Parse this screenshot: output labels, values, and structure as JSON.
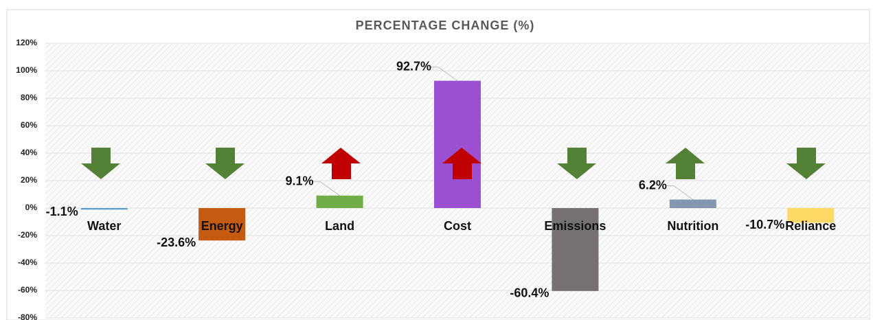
{
  "chart_data": {
    "type": "bar",
    "title": "PERCENTAGE CHANGE (%)",
    "categories": [
      "Water",
      "Energy",
      "Land",
      "Cost",
      "Emissions",
      "Nutrition",
      "Reliance"
    ],
    "values": [
      -1.1,
      -23.6,
      9.1,
      92.7,
      -60.4,
      6.2,
      -10.7
    ],
    "value_labels": [
      "-1.1%",
      "-23.6%",
      "9.1%",
      "92.7%",
      "-60.4%",
      "6.2%",
      "-10.7%"
    ],
    "colors": [
      "#5b9bd5",
      "#c55a11",
      "#70ad47",
      "#9b4fd1",
      "#767171",
      "#8497b0",
      "#ffd966"
    ],
    "ylim": [
      -80,
      120
    ],
    "yticks": [
      {
        "value": -80,
        "label": "-80%"
      },
      {
        "value": -60,
        "label": "-60%"
      },
      {
        "value": -40,
        "label": "-40%"
      },
      {
        "value": -20,
        "label": "-20%"
      },
      {
        "value": 0,
        "label": "0%"
      },
      {
        "value": 20,
        "label": "20%"
      },
      {
        "value": 40,
        "label": "40%"
      },
      {
        "value": 60,
        "label": "60%"
      },
      {
        "value": 80,
        "label": "80%"
      },
      {
        "value": 100,
        "label": "100%"
      },
      {
        "value": 120,
        "label": "120%"
      }
    ],
    "grid": true
  }
}
